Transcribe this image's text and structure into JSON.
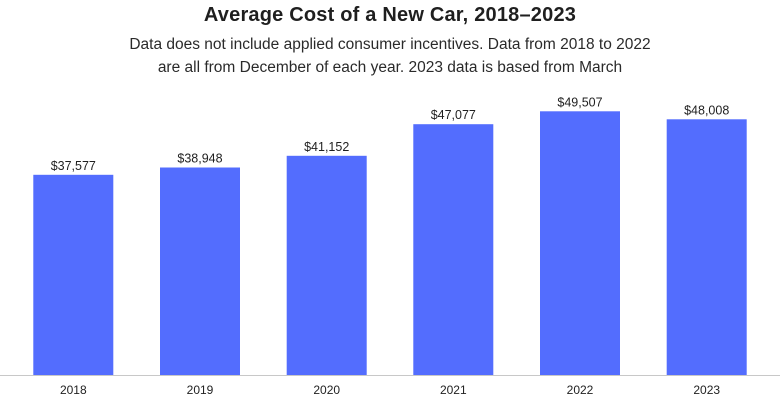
{
  "chart_data": {
    "type": "bar",
    "title": "Average Cost of a New Car, 2018–2023",
    "subtitle_lines": [
      "Data does not include applied consumer incentives. Data from 2018 to 2022",
      "are all from December of each year. 2023 data is based from March"
    ],
    "categories": [
      "2018",
      "2019",
      "2020",
      "2021",
      "2022",
      "2023"
    ],
    "values": [
      37577,
      38948,
      41152,
      47077,
      49507,
      48008
    ],
    "value_labels": [
      "$37,577",
      "$38,948",
      "$41,152",
      "$47,077",
      "$49,507",
      "$48,008"
    ],
    "xlabel": "",
    "ylabel": "",
    "ylim": [
      0,
      52000
    ],
    "grid": false,
    "legend": "none",
    "bar_color": "#536dfe",
    "axis_color": "#c8c8c8"
  }
}
